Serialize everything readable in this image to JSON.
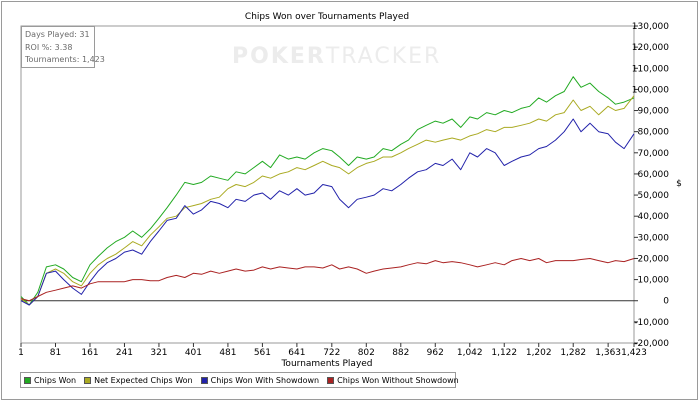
{
  "chart_data": {
    "type": "line",
    "title": "Chips Won over Tournaments Played",
    "xlabel": "Tournaments Played",
    "ylabel": "$",
    "xlim": [
      1,
      1423
    ],
    "ylim": [
      -20000,
      130000
    ],
    "x_ticks": [
      1,
      81,
      161,
      241,
      321,
      401,
      481,
      561,
      641,
      722,
      802,
      882,
      962,
      1042,
      1122,
      1202,
      1282,
      1363,
      1423
    ],
    "x_tick_labels": [
      "1",
      "81",
      "161",
      "241",
      "321",
      "401",
      "481",
      "561",
      "641",
      "722",
      "802",
      "882",
      "962",
      "1,042",
      "1,122",
      "1,202",
      "1,282",
      "1,363",
      "1,423"
    ],
    "y_ticks": [
      -20000,
      -10000,
      0,
      10000,
      20000,
      30000,
      40000,
      50000,
      60000,
      70000,
      80000,
      90000,
      100000,
      110000,
      120000,
      130000
    ],
    "y_tick_labels": [
      "-20,000",
      "-10,000",
      "0",
      "10,000",
      "20,000",
      "30,000",
      "40,000",
      "50,000",
      "60,000",
      "70,000",
      "80,000",
      "90,000",
      "100,000",
      "110,000",
      "120,000",
      "130,000"
    ],
    "x": [
      1,
      20,
      40,
      60,
      81,
      100,
      121,
      141,
      161,
      180,
      201,
      221,
      241,
      260,
      281,
      301,
      321,
      340,
      361,
      381,
      401,
      420,
      441,
      461,
      481,
      500,
      521,
      541,
      561,
      580,
      601,
      621,
      641,
      660,
      681,
      701,
      722,
      740,
      761,
      781,
      802,
      820,
      841,
      861,
      882,
      900,
      921,
      941,
      962,
      980,
      1001,
      1021,
      1042,
      1060,
      1081,
      1101,
      1122,
      1140,
      1161,
      1181,
      1202,
      1220,
      1241,
      1261,
      1282,
      1300,
      1321,
      1341,
      1363,
      1380,
      1400,
      1423
    ],
    "series": [
      {
        "name": "Chips Won",
        "color": "#22aa22",
        "values": [
          2000,
          -2000,
          4000,
          16000,
          17000,
          15000,
          11000,
          9000,
          17000,
          21000,
          25000,
          28000,
          30000,
          33000,
          30000,
          34000,
          39000,
          44000,
          50000,
          56000,
          55000,
          56000,
          59000,
          58000,
          57000,
          61000,
          60000,
          63000,
          66000,
          63000,
          69000,
          67000,
          68000,
          67000,
          70000,
          72000,
          71000,
          68000,
          64000,
          68000,
          67000,
          68000,
          72000,
          71000,
          74000,
          76000,
          81000,
          83000,
          85000,
          84000,
          86000,
          82000,
          87000,
          86000,
          89000,
          88000,
          90000,
          89000,
          91000,
          92000,
          96000,
          94000,
          97000,
          99000,
          106000,
          101000,
          103000,
          99000,
          96000,
          93000,
          94000,
          96000
        ]
      },
      {
        "name": "Net Expected Chips Won",
        "color": "#aaaa22",
        "values": [
          1000,
          -2000,
          2000,
          13000,
          15000,
          13000,
          9000,
          7000,
          13000,
          17000,
          20000,
          22000,
          25000,
          28000,
          26000,
          31000,
          35000,
          39000,
          40000,
          44000,
          45000,
          46000,
          48000,
          49000,
          53000,
          55000,
          54000,
          56000,
          59000,
          58000,
          60000,
          61000,
          63000,
          62000,
          64000,
          66000,
          64000,
          63000,
          60000,
          63000,
          65000,
          66000,
          68000,
          68000,
          70000,
          72000,
          74000,
          76000,
          75000,
          76000,
          77000,
          76000,
          78000,
          79000,
          81000,
          80000,
          82000,
          82000,
          83000,
          84000,
          86000,
          85000,
          88000,
          89000,
          95000,
          90000,
          92000,
          88000,
          92000,
          90000,
          91000,
          97000
        ]
      },
      {
        "name": "Chips Won With Showdown",
        "color": "#2222aa",
        "values": [
          0,
          -2000,
          2000,
          13000,
          14000,
          10000,
          6000,
          3000,
          9000,
          14000,
          18000,
          20000,
          23000,
          24000,
          22000,
          28000,
          33000,
          38000,
          39000,
          45000,
          41000,
          43000,
          47000,
          46000,
          44000,
          48000,
          47000,
          50000,
          51000,
          48000,
          52000,
          50000,
          53000,
          50000,
          51000,
          55000,
          54000,
          48000,
          44000,
          48000,
          49000,
          50000,
          53000,
          52000,
          55000,
          58000,
          61000,
          62000,
          65000,
          64000,
          67000,
          62000,
          70000,
          68000,
          72000,
          70000,
          64000,
          66000,
          68000,
          69000,
          72000,
          73000,
          76000,
          80000,
          86000,
          80000,
          84000,
          80000,
          79000,
          75000,
          72000,
          79000
        ]
      },
      {
        "name": "Chips Won Without Showdown",
        "color": "#aa2222",
        "values": [
          1000,
          0,
          2000,
          4000,
          5000,
          6000,
          7000,
          6000,
          8000,
          9000,
          9000,
          9000,
          9000,
          10000,
          10000,
          9500,
          9500,
          11000,
          12000,
          11000,
          13000,
          12500,
          14000,
          13000,
          14000,
          15000,
          14000,
          14500,
          16000,
          15000,
          16000,
          15500,
          15000,
          16000,
          16000,
          15500,
          17000,
          15000,
          16000,
          15000,
          13000,
          14000,
          15000,
          15500,
          16000,
          17000,
          18000,
          17500,
          19000,
          18000,
          18500,
          18000,
          17000,
          16000,
          17000,
          18000,
          17000,
          19000,
          20000,
          19000,
          20000,
          18000,
          19000,
          19000,
          19000,
          19500,
          20000,
          19000,
          18000,
          19000,
          18500,
          20000
        ]
      }
    ],
    "legend_position": "bottom-left",
    "grid": false
  },
  "stats": {
    "days_played": "Days Played: 31",
    "roi": "ROI %: 3.38",
    "tournaments": "Tournaments: 1,423"
  },
  "watermark": {
    "part1": "POKER",
    "part2": "TRACKER"
  }
}
